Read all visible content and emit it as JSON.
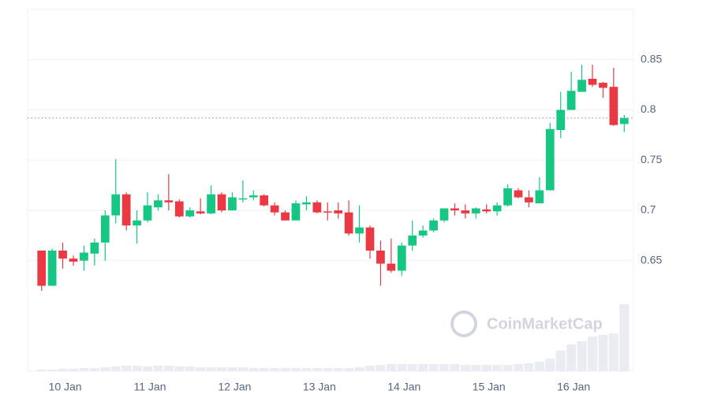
{
  "chart_data": {
    "type": "candlestick",
    "categories": [
      null,
      null,
      "10 Jan",
      null,
      null,
      null,
      null,
      null,
      null,
      null,
      "11 Jan",
      null,
      null,
      null,
      null,
      null,
      null,
      null,
      "12 Jan",
      null,
      null,
      null,
      null,
      null,
      null,
      null,
      "13 Jan",
      null,
      null,
      null,
      null,
      null,
      null,
      null,
      "14 Jan",
      null,
      null,
      null,
      null,
      null,
      null,
      null,
      "15 Jan",
      null,
      null,
      null,
      null,
      null,
      null,
      null,
      "16 Jan",
      null,
      null,
      null,
      null,
      null
    ],
    "open": [
      0.66,
      0.625,
      0.66,
      0.652,
      0.65,
      0.657,
      0.668,
      0.695,
      0.716,
      0.685,
      0.69,
      0.703,
      0.71,
      0.709,
      0.694,
      0.699,
      0.697,
      0.716,
      0.7,
      0.711,
      0.713,
      0.715,
      0.705,
      0.698,
      0.69,
      0.706,
      0.708,
      0.699,
      0.7,
      0.698,
      0.677,
      0.683,
      0.66,
      0.647,
      0.64,
      0.665,
      0.675,
      0.68,
      0.69,
      0.702,
      0.7,
      0.697,
      0.701,
      0.699,
      0.705,
      0.72,
      0.713,
      0.707,
      0.72,
      0.78,
      0.8,
      0.818,
      0.831,
      0.827,
      0.823,
      0.786
    ],
    "high": [
      0.66,
      0.662,
      0.668,
      0.655,
      0.665,
      0.672,
      0.7,
      0.751,
      0.718,
      0.7,
      0.718,
      0.716,
      0.736,
      0.711,
      0.703,
      0.712,
      0.725,
      0.718,
      0.718,
      0.73,
      0.72,
      0.716,
      0.708,
      0.7,
      0.71,
      0.714,
      0.71,
      0.708,
      0.708,
      0.71,
      0.705,
      0.685,
      0.67,
      0.672,
      0.668,
      0.69,
      0.685,
      0.692,
      0.702,
      0.707,
      0.706,
      0.703,
      0.706,
      0.708,
      0.726,
      0.722,
      0.72,
      0.733,
      0.787,
      0.818,
      0.838,
      0.845,
      0.845,
      0.828,
      0.842,
      0.795
    ],
    "low": [
      0.62,
      0.625,
      0.642,
      0.645,
      0.64,
      0.645,
      0.65,
      0.687,
      0.68,
      0.667,
      0.688,
      0.7,
      0.7,
      0.693,
      0.693,
      0.696,
      0.696,
      0.698,
      0.7,
      0.708,
      0.71,
      0.704,
      0.695,
      0.69,
      0.69,
      0.7,
      0.697,
      0.69,
      0.692,
      0.675,
      0.668,
      0.652,
      0.625,
      0.638,
      0.635,
      0.66,
      0.673,
      0.678,
      0.688,
      0.695,
      0.692,
      0.692,
      0.697,
      0.695,
      0.704,
      0.712,
      0.703,
      0.707,
      0.72,
      0.772,
      0.8,
      0.818,
      0.823,
      0.812,
      0.784,
      0.778
    ],
    "close": [
      0.625,
      0.66,
      0.652,
      0.649,
      0.658,
      0.668,
      0.695,
      0.716,
      0.685,
      0.69,
      0.705,
      0.71,
      0.708,
      0.694,
      0.7,
      0.697,
      0.716,
      0.7,
      0.713,
      0.712,
      0.715,
      0.705,
      0.698,
      0.69,
      0.707,
      0.708,
      0.698,
      0.698,
      0.697,
      0.677,
      0.683,
      0.66,
      0.647,
      0.64,
      0.665,
      0.675,
      0.68,
      0.69,
      0.702,
      0.7,
      0.697,
      0.702,
      0.699,
      0.705,
      0.722,
      0.713,
      0.708,
      0.72,
      0.781,
      0.8,
      0.819,
      0.83,
      0.825,
      0.822,
      0.785,
      0.792
    ],
    "volume": [
      2,
      2,
      3,
      3,
      4,
      4,
      5,
      6,
      7,
      7,
      6,
      7,
      7,
      6,
      6,
      5,
      5,
      5,
      5,
      5,
      4,
      4,
      4,
      4,
      4,
      4,
      4,
      4,
      4,
      4,
      5,
      7,
      8,
      9,
      9,
      9,
      9,
      9,
      9,
      9,
      8,
      8,
      8,
      8,
      8,
      9,
      10,
      12,
      16,
      26,
      34,
      38,
      44,
      46,
      48,
      85
    ],
    "up_color": "#16c784",
    "down_color": "#ea3943",
    "volume_color": "#e9ecf1",
    "ylim": [
      0.54,
      0.9
    ],
    "yticks": [
      0.65,
      0.7,
      0.75,
      0.8,
      0.85
    ],
    "grid": true,
    "current_price": 0.792,
    "watermark": "CoinMarketCap"
  }
}
